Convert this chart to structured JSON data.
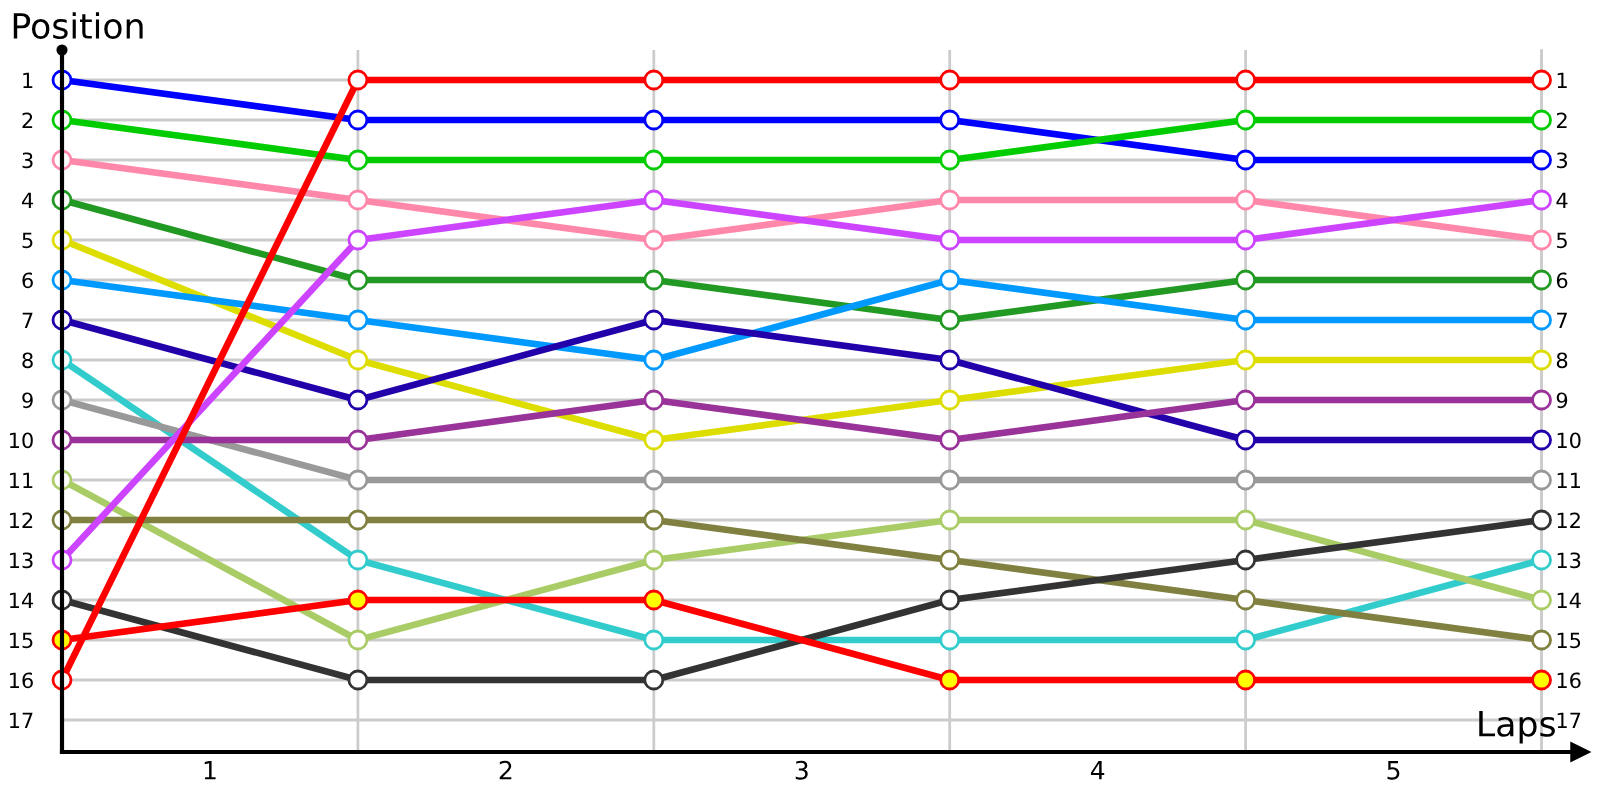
{
  "chart_data": {
    "type": "line",
    "xlabel": "Laps",
    "ylabel": "Position",
    "x": [
      0,
      1,
      2,
      3,
      4,
      5
    ],
    "xlim": [
      0,
      5.13
    ],
    "xticks": [
      {
        "value": 0.5,
        "label": "1"
      },
      {
        "value": 1.5,
        "label": "2"
      },
      {
        "value": 2.5,
        "label": "3"
      },
      {
        "value": 3.5,
        "label": "4"
      },
      {
        "value": 4.5,
        "label": "5"
      }
    ],
    "ylim": [
      17.8,
      0.25
    ],
    "yticks": [
      1,
      2,
      3,
      4,
      5,
      6,
      7,
      8,
      9,
      10,
      11,
      12,
      13,
      14,
      15,
      16,
      17
    ],
    "y2lim": [
      17.8,
      0.25
    ],
    "y2ticks": [
      1,
      2,
      3,
      4,
      5,
      6,
      7,
      8,
      9,
      10,
      11,
      12,
      13,
      14,
      15,
      16,
      17
    ],
    "grid": "y",
    "marker": "circle",
    "line_style": "solid",
    "ref_lines": [
      {
        "axis": "x",
        "value": 1,
        "color": "#cccccc"
      },
      {
        "axis": "x",
        "value": 2,
        "color": "#cccccc"
      },
      {
        "axis": "x",
        "value": 3,
        "color": "#cccccc"
      },
      {
        "axis": "x",
        "value": 4,
        "color": "#cccccc"
      },
      {
        "axis": "x",
        "value": 5,
        "color": "#cccccc"
      }
    ],
    "series": [
      {
        "color": "#0000ff",
        "values": [
          1,
          2,
          2,
          2,
          3,
          3
        ]
      },
      {
        "color": "#00cc00",
        "values": [
          2,
          3,
          3,
          3,
          2,
          2
        ]
      },
      {
        "color": "#ff88aa",
        "values": [
          3,
          4,
          5,
          4,
          4,
          5
        ]
      },
      {
        "color": "#229922",
        "values": [
          4,
          6,
          6,
          7,
          6,
          6
        ]
      },
      {
        "color": "#dddd00",
        "values": [
          5,
          8,
          10,
          9,
          8,
          8
        ]
      },
      {
        "color": "#0099ff",
        "values": [
          6,
          7,
          8,
          6,
          7,
          7
        ]
      },
      {
        "color": "#2200aa",
        "values": [
          7,
          9,
          7,
          8,
          10,
          10
        ]
      },
      {
        "color": "#33cccc",
        "values": [
          8,
          13,
          15,
          15,
          15,
          13
        ]
      },
      {
        "color": "#999999",
        "values": [
          9,
          11,
          11,
          11,
          11,
          11
        ]
      },
      {
        "color": "#993399",
        "values": [
          10,
          10,
          9,
          10,
          9,
          9
        ]
      },
      {
        "color": "#aacc66",
        "values": [
          11,
          15,
          13,
          12,
          12,
          14
        ]
      },
      {
        "color": "#808040",
        "values": [
          12,
          12,
          12,
          13,
          14,
          15
        ]
      },
      {
        "color": "#cc44ff",
        "values": [
          13,
          5,
          4,
          5,
          5,
          4
        ]
      },
      {
        "color": "#333333",
        "values": [
          14,
          16,
          16,
          14,
          13,
          12
        ]
      },
      {
        "color": "#ff0000",
        "values": [
          15,
          14,
          14,
          16,
          16,
          16
        ],
        "colors": [
          "#ffff00",
          "#ffff00",
          "#ffff00",
          "#ffff00",
          "#ffff00",
          "#ffff00"
        ]
      },
      {
        "color": "#ff0000",
        "values": [
          16,
          1,
          1,
          1,
          1,
          1
        ]
      }
    ]
  }
}
